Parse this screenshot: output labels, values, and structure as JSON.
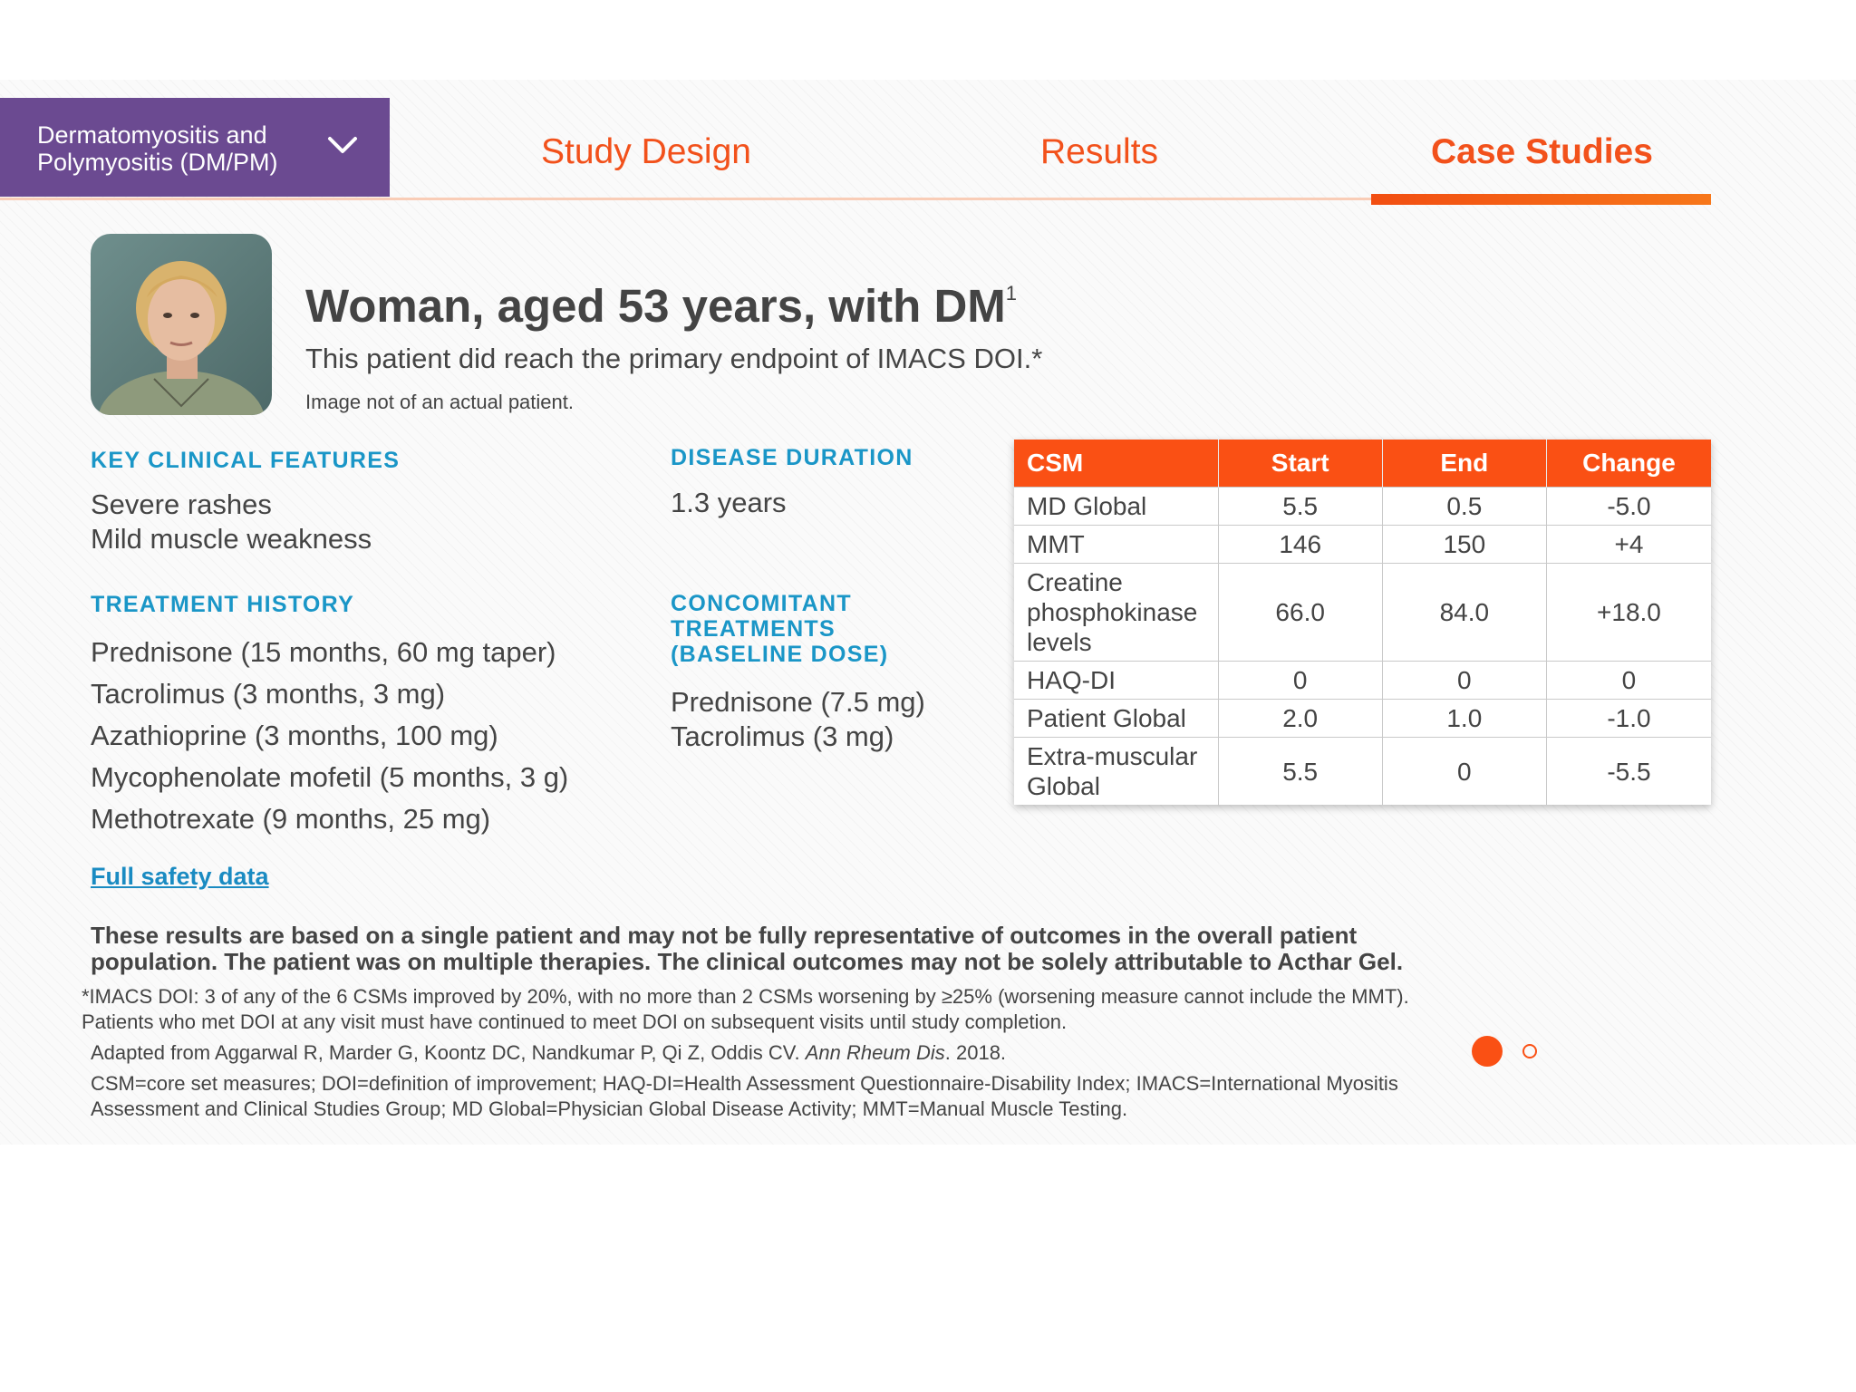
{
  "nav": {
    "dropdown_label": "Dermatomyositis and Polymyositis (DM/PM)",
    "tabs": [
      {
        "label": "Study Design",
        "active": false
      },
      {
        "label": "Results",
        "active": false
      },
      {
        "label": "Case Studies",
        "active": true
      }
    ]
  },
  "patient": {
    "headline": "Woman, aged 53 years, with DM",
    "headline_sup": "1",
    "subhead": "This patient did reach the primary endpoint of IMACS DOI.*",
    "image_disclaimer": "Image not of an actual patient."
  },
  "sections": {
    "key_features": {
      "title": "KEY CLINICAL FEATURES",
      "items": [
        "Severe rashes",
        "Mild muscle weakness"
      ]
    },
    "disease_duration": {
      "title": "DISEASE DURATION",
      "value": "1.3 years"
    },
    "treatment_history": {
      "title": "TREATMENT HISTORY",
      "items": [
        "Prednisone (15 months, 60 mg taper)",
        "Tacrolimus (3 months, 3 mg)",
        "Azathioprine (3 months, 100 mg)",
        "Mycophenolate mofetil (5 months, 3 g)",
        "Methotrexate (9 months, 25 mg)"
      ]
    },
    "concomitant": {
      "title": "CONCOMITANT TREATMENTS (BASELINE DOSE)",
      "items": [
        "Prednisone (7.5 mg)",
        "Tacrolimus (3 mg)"
      ]
    }
  },
  "safety_link": "Full safety data",
  "table": {
    "headers": [
      "CSM",
      "Start",
      "End",
      "Change"
    ],
    "rows": [
      [
        "MD Global",
        "5.5",
        "0.5",
        "-5.0"
      ],
      [
        "MMT",
        "146",
        "150",
        "+4"
      ],
      [
        "Creatine phosphokinase levels",
        "66.0",
        "84.0",
        "+18.0"
      ],
      [
        "HAQ-DI",
        "0",
        "0",
        "0"
      ],
      [
        "Patient Global",
        "2.0",
        "1.0",
        "-1.0"
      ],
      [
        "Extra-muscular Global",
        "5.5",
        "0",
        "-5.5"
      ]
    ]
  },
  "footer": {
    "bold_note": "These results are based on a single patient and may not be fully representative of outcomes in the overall patient population. The patient was on multiple therapies. The clinical outcomes may not be solely attributable to Acthar Gel.",
    "doi_note": "*IMACS DOI: 3 of any of the 6 CSMs improved by 20%, with no more than 2 CSMs worsening by ≥25% (worsening measure cannot include the MMT). Patients who met DOI at any visit must have continued to meet DOI on subsequent visits until study completion.",
    "citation_prefix": "Adapted from Aggarwal R, Marder G, Koontz DC, Nandkumar P, Qi Z, Oddis CV.",
    "citation_journal": "Ann Rheum Dis",
    "citation_suffix": ". 2018.",
    "abbreviations": "CSM=core set measures; DOI=definition of improvement; HAQ-DI=Health Assessment Questionnaire-Disability Index; IMACS=International Myositis Assessment and Clinical Studies Group; MD Global=Physician Global Disease Activity; MMT=Manual Muscle Testing."
  },
  "pager": {
    "total": 2,
    "current": 1
  },
  "colors": {
    "accent": "#fa5014",
    "purple": "#6b4a91",
    "section_blue": "#1a96c7",
    "text": "#444444"
  }
}
